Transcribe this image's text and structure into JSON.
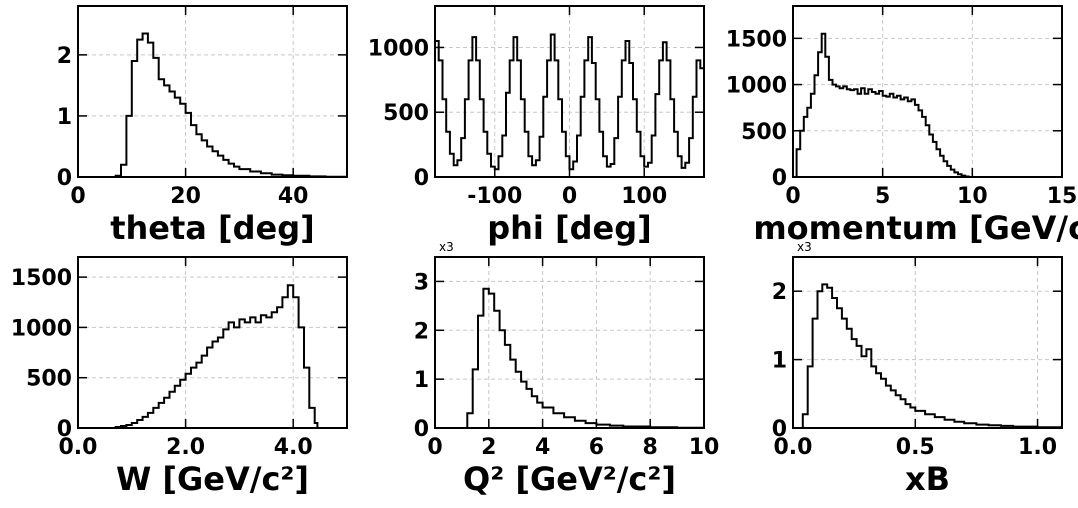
{
  "chart_data": [
    {
      "type": "step-histogram",
      "xlabel": "theta [deg]",
      "multiplier": "",
      "xlim": [
        0,
        50
      ],
      "ylim": [
        0,
        2.8
      ],
      "xticks": [
        0,
        20,
        40
      ],
      "xtick_labels": [
        "0",
        "20",
        "40"
      ],
      "yticks": [
        0,
        1,
        2
      ],
      "ytick_labels": [
        "0",
        "1",
        "2"
      ],
      "points": [
        [
          0,
          0
        ],
        [
          6,
          0
        ],
        [
          7,
          0.02
        ],
        [
          8,
          0.2
        ],
        [
          9,
          1.0
        ],
        [
          10,
          1.9
        ],
        [
          11,
          2.25
        ],
        [
          12,
          2.35
        ],
        [
          13,
          2.2
        ],
        [
          14,
          1.95
        ],
        [
          15,
          1.6
        ],
        [
          16,
          1.5
        ],
        [
          17,
          1.4
        ],
        [
          18,
          1.3
        ],
        [
          19,
          1.2
        ],
        [
          20,
          1.05
        ],
        [
          21,
          0.85
        ],
        [
          22,
          0.7
        ],
        [
          23,
          0.6
        ],
        [
          24,
          0.5
        ],
        [
          25,
          0.42
        ],
        [
          26,
          0.35
        ],
        [
          27,
          0.28
        ],
        [
          28,
          0.22
        ],
        [
          29,
          0.17
        ],
        [
          30,
          0.13
        ],
        [
          32,
          0.09
        ],
        [
          34,
          0.06
        ],
        [
          36,
          0.04
        ],
        [
          38,
          0.03
        ],
        [
          40,
          0.02
        ],
        [
          43,
          0.01
        ],
        [
          46,
          0.005
        ],
        [
          50,
          0
        ]
      ]
    },
    {
      "type": "step-histogram",
      "xlabel": "phi [deg]",
      "multiplier": "",
      "xlim": [
        -180,
        180
      ],
      "ylim": [
        0,
        1320
      ],
      "xticks": [
        -100,
        0,
        100
      ],
      "xtick_labels": [
        "-100",
        "0",
        "100"
      ],
      "yticks": [
        0,
        500,
        1000
      ],
      "ytick_labels": [
        "0",
        "500",
        "1000"
      ],
      "points": [
        [
          -180,
          1050
        ],
        [
          -175,
          900
        ],
        [
          -170,
          600
        ],
        [
          -165,
          350
        ],
        [
          -160,
          180
        ],
        [
          -155,
          90
        ],
        [
          -150,
          130
        ],
        [
          -145,
          300
        ],
        [
          -140,
          600
        ],
        [
          -135,
          900
        ],
        [
          -130,
          1080
        ],
        [
          -125,
          900
        ],
        [
          -120,
          600
        ],
        [
          -115,
          350
        ],
        [
          -110,
          180
        ],
        [
          -105,
          80
        ],
        [
          -100,
          60
        ],
        [
          -95,
          160
        ],
        [
          -90,
          320
        ],
        [
          -85,
          650
        ],
        [
          -80,
          900
        ],
        [
          -75,
          1080
        ],
        [
          -70,
          900
        ],
        [
          -65,
          600
        ],
        [
          -60,
          350
        ],
        [
          -55,
          160
        ],
        [
          -50,
          90
        ],
        [
          -45,
          130
        ],
        [
          -40,
          310
        ],
        [
          -35,
          620
        ],
        [
          -30,
          900
        ],
        [
          -25,
          1100
        ],
        [
          -20,
          900
        ],
        [
          -15,
          600
        ],
        [
          -10,
          350
        ],
        [
          -5,
          160
        ],
        [
          0,
          60
        ],
        [
          5,
          120
        ],
        [
          10,
          320
        ],
        [
          15,
          620
        ],
        [
          20,
          900
        ],
        [
          25,
          1080
        ],
        [
          30,
          880
        ],
        [
          35,
          600
        ],
        [
          40,
          350
        ],
        [
          45,
          160
        ],
        [
          50,
          80
        ],
        [
          55,
          100
        ],
        [
          60,
          300
        ],
        [
          65,
          620
        ],
        [
          70,
          900
        ],
        [
          75,
          1050
        ],
        [
          80,
          880
        ],
        [
          85,
          600
        ],
        [
          90,
          350
        ],
        [
          95,
          160
        ],
        [
          100,
          80
        ],
        [
          105,
          110
        ],
        [
          110,
          320
        ],
        [
          115,
          640
        ],
        [
          120,
          900
        ],
        [
          125,
          1040
        ],
        [
          130,
          900
        ],
        [
          135,
          600
        ],
        [
          140,
          350
        ],
        [
          145,
          160
        ],
        [
          150,
          70
        ],
        [
          155,
          110
        ],
        [
          160,
          300
        ],
        [
          165,
          620
        ],
        [
          170,
          900
        ],
        [
          175,
          840
        ],
        [
          180,
          840
        ]
      ]
    },
    {
      "type": "step-histogram",
      "xlabel": "momentum [GeV/c]",
      "multiplier": "",
      "xlim": [
        0,
        15
      ],
      "ylim": [
        0,
        1850
      ],
      "xticks": [
        0,
        5,
        10,
        15
      ],
      "xtick_labels": [
        "0",
        "5",
        "10",
        "15"
      ],
      "yticks": [
        0,
        500,
        1000,
        1500
      ],
      "ytick_labels": [
        "0",
        "500",
        "1000",
        "1500"
      ],
      "points": [
        [
          0,
          0
        ],
        [
          0.2,
          300
        ],
        [
          0.4,
          500
        ],
        [
          0.6,
          650
        ],
        [
          0.8,
          750
        ],
        [
          1.0,
          900
        ],
        [
          1.2,
          1100
        ],
        [
          1.4,
          1350
        ],
        [
          1.6,
          1550
        ],
        [
          1.8,
          1300
        ],
        [
          2.0,
          1050
        ],
        [
          2.2,
          1000
        ],
        [
          2.4,
          980
        ],
        [
          2.6,
          960
        ],
        [
          2.8,
          980
        ],
        [
          3.0,
          950
        ],
        [
          3.2,
          940
        ],
        [
          3.4,
          950
        ],
        [
          3.6,
          900
        ],
        [
          3.8,
          960
        ],
        [
          4.0,
          900
        ],
        [
          4.2,
          950
        ],
        [
          4.4,
          920
        ],
        [
          4.6,
          900
        ],
        [
          4.8,
          930
        ],
        [
          5.0,
          880
        ],
        [
          5.2,
          870
        ],
        [
          5.4,
          900
        ],
        [
          5.6,
          860
        ],
        [
          5.8,
          880
        ],
        [
          6.0,
          840
        ],
        [
          6.2,
          860
        ],
        [
          6.4,
          820
        ],
        [
          6.6,
          840
        ],
        [
          6.8,
          780
        ],
        [
          7.0,
          720
        ],
        [
          7.2,
          650
        ],
        [
          7.4,
          560
        ],
        [
          7.6,
          460
        ],
        [
          7.8,
          380
        ],
        [
          8.0,
          300
        ],
        [
          8.2,
          230
        ],
        [
          8.4,
          170
        ],
        [
          8.6,
          120
        ],
        [
          8.8,
          80
        ],
        [
          9.0,
          50
        ],
        [
          9.2,
          30
        ],
        [
          9.4,
          15
        ],
        [
          9.6,
          5
        ],
        [
          9.8,
          0
        ],
        [
          15,
          0
        ]
      ]
    },
    {
      "type": "step-histogram",
      "xlabel": "W [GeV/c²]",
      "multiplier": "",
      "xlim": [
        0,
        5
      ],
      "ylim": [
        0,
        1700
      ],
      "xticks": [
        0,
        2,
        4
      ],
      "xtick_labels": [
        "0.0",
        "2.0",
        "4.0"
      ],
      "yticks": [
        0,
        500,
        1000,
        1500
      ],
      "ytick_labels": [
        "0",
        "500",
        "1000",
        "1500"
      ],
      "points": [
        [
          0,
          0
        ],
        [
          0.6,
          0
        ],
        [
          0.7,
          10
        ],
        [
          0.8,
          20
        ],
        [
          0.9,
          30
        ],
        [
          1.0,
          50
        ],
        [
          1.1,
          80
        ],
        [
          1.2,
          110
        ],
        [
          1.3,
          150
        ],
        [
          1.4,
          200
        ],
        [
          1.5,
          250
        ],
        [
          1.6,
          300
        ],
        [
          1.7,
          360
        ],
        [
          1.8,
          420
        ],
        [
          1.9,
          480
        ],
        [
          2.0,
          540
        ],
        [
          2.1,
          600
        ],
        [
          2.2,
          650
        ],
        [
          2.3,
          720
        ],
        [
          2.4,
          800
        ],
        [
          2.5,
          860
        ],
        [
          2.6,
          900
        ],
        [
          2.7,
          980
        ],
        [
          2.8,
          1050
        ],
        [
          2.9,
          1000
        ],
        [
          3.0,
          1080
        ],
        [
          3.1,
          1050
        ],
        [
          3.2,
          1100
        ],
        [
          3.3,
          1050
        ],
        [
          3.4,
          1120
        ],
        [
          3.5,
          1100
        ],
        [
          3.6,
          1150
        ],
        [
          3.7,
          1200
        ],
        [
          3.8,
          1300
        ],
        [
          3.9,
          1420
        ],
        [
          4.0,
          1300
        ],
        [
          4.1,
          1000
        ],
        [
          4.2,
          600
        ],
        [
          4.3,
          200
        ],
        [
          4.4,
          50
        ],
        [
          4.45,
          0
        ],
        [
          5.0,
          0
        ]
      ]
    },
    {
      "type": "step-histogram",
      "xlabel": "Q² [GeV²/c²]",
      "multiplier": "x3",
      "xlim": [
        0,
        10
      ],
      "ylim": [
        0,
        3.5
      ],
      "xticks": [
        0,
        2,
        4,
        6,
        8,
        10
      ],
      "xtick_labels": [
        "0",
        "2",
        "4",
        "6",
        "8",
        "10"
      ],
      "yticks": [
        0,
        1,
        2,
        3
      ],
      "ytick_labels": [
        "0",
        "1",
        "2",
        "3"
      ],
      "points": [
        [
          0,
          0
        ],
        [
          1.0,
          0
        ],
        [
          1.2,
          0.3
        ],
        [
          1.4,
          1.2
        ],
        [
          1.6,
          2.3
        ],
        [
          1.8,
          2.85
        ],
        [
          2.0,
          2.75
        ],
        [
          2.2,
          2.4
        ],
        [
          2.4,
          2.0
        ],
        [
          2.6,
          1.7
        ],
        [
          2.8,
          1.4
        ],
        [
          3.0,
          1.15
        ],
        [
          3.2,
          0.95
        ],
        [
          3.4,
          0.8
        ],
        [
          3.6,
          0.65
        ],
        [
          3.8,
          0.52
        ],
        [
          4.0,
          0.42
        ],
        [
          4.4,
          0.3
        ],
        [
          4.8,
          0.22
        ],
        [
          5.2,
          0.15
        ],
        [
          5.6,
          0.1
        ],
        [
          6.0,
          0.07
        ],
        [
          6.5,
          0.05
        ],
        [
          7.0,
          0.03
        ],
        [
          8.0,
          0.015
        ],
        [
          9.0,
          0.005
        ],
        [
          10,
          0
        ]
      ]
    },
    {
      "type": "step-histogram",
      "xlabel": "xB",
      "multiplier": "x3",
      "xlim": [
        0,
        1.1
      ],
      "ylim": [
        0,
        2.5
      ],
      "xticks": [
        0,
        0.5,
        1.0
      ],
      "xtick_labels": [
        "0.0",
        "0.5",
        "1.0"
      ],
      "yticks": [
        0,
        1,
        2
      ],
      "ytick_labels": [
        "0",
        "1",
        "2"
      ],
      "points": [
        [
          0,
          0
        ],
        [
          0.02,
          0
        ],
        [
          0.04,
          0.2
        ],
        [
          0.06,
          0.9
        ],
        [
          0.08,
          1.6
        ],
        [
          0.1,
          2.0
        ],
        [
          0.12,
          2.1
        ],
        [
          0.14,
          2.05
        ],
        [
          0.16,
          1.9
        ],
        [
          0.18,
          1.75
        ],
        [
          0.2,
          1.6
        ],
        [
          0.22,
          1.45
        ],
        [
          0.24,
          1.3
        ],
        [
          0.26,
          1.2
        ],
        [
          0.28,
          1.05
        ],
        [
          0.3,
          1.15
        ],
        [
          0.32,
          0.9
        ],
        [
          0.34,
          0.8
        ],
        [
          0.36,
          0.72
        ],
        [
          0.38,
          0.62
        ],
        [
          0.4,
          0.55
        ],
        [
          0.42,
          0.48
        ],
        [
          0.44,
          0.42
        ],
        [
          0.46,
          0.35
        ],
        [
          0.48,
          0.3
        ],
        [
          0.5,
          0.25
        ],
        [
          0.54,
          0.2
        ],
        [
          0.58,
          0.16
        ],
        [
          0.62,
          0.12
        ],
        [
          0.66,
          0.09
        ],
        [
          0.7,
          0.07
        ],
        [
          0.75,
          0.05
        ],
        [
          0.8,
          0.04
        ],
        [
          0.85,
          0.03
        ],
        [
          0.9,
          0.02
        ],
        [
          1.0,
          0.01
        ],
        [
          1.1,
          0
        ]
      ]
    }
  ]
}
